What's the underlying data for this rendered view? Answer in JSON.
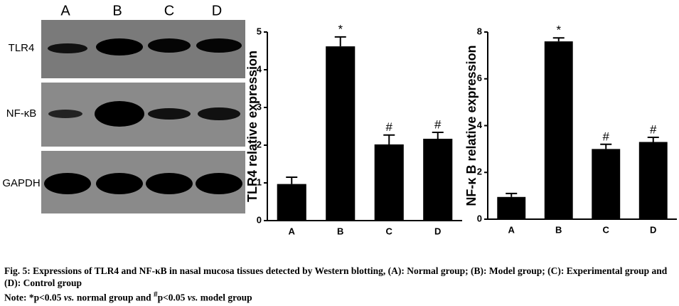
{
  "blot": {
    "lanes": [
      "A",
      "B",
      "C",
      "D"
    ],
    "rows": [
      "TLR4",
      "NF-κB",
      "GAPDH"
    ]
  },
  "chart_data": [
    {
      "type": "bar",
      "y_label": "TLR4 relative expression",
      "categories": [
        "A",
        "B",
        "C",
        "D"
      ],
      "values": [
        0.97,
        4.62,
        2.02,
        2.17
      ],
      "errors": [
        0.18,
        0.25,
        0.25,
        0.17
      ],
      "annotations": [
        null,
        "*",
        "#",
        "#"
      ],
      "color": "#000000",
      "ylim": [
        0,
        5
      ],
      "yticks": [
        0,
        1,
        2,
        3,
        4,
        5
      ]
    },
    {
      "type": "bar",
      "y_label": "NF-κ B relative expression",
      "categories": [
        "A",
        "B",
        "C",
        "D"
      ],
      "values": [
        0.95,
        7.6,
        3.0,
        3.3
      ],
      "errors": [
        0.15,
        0.15,
        0.2,
        0.2
      ],
      "annotations": [
        null,
        "*",
        "#",
        "#"
      ],
      "color": "#000000",
      "ylim": [
        0,
        8
      ],
      "yticks": [
        0,
        2,
        4,
        6,
        8
      ]
    }
  ],
  "caption": {
    "text": "Fig. 5: Expressions of TLR4 and NF-κB in nasal mucosa tissues detected by Western blotting, (A): Normal group; (B): Model group; (C): Experimental group and (D): Control group",
    "note": [
      "Note: *p<0.05 ",
      "vs.",
      " normal group and ",
      "#",
      "p<0.05 ",
      "vs.",
      " model group"
    ]
  }
}
